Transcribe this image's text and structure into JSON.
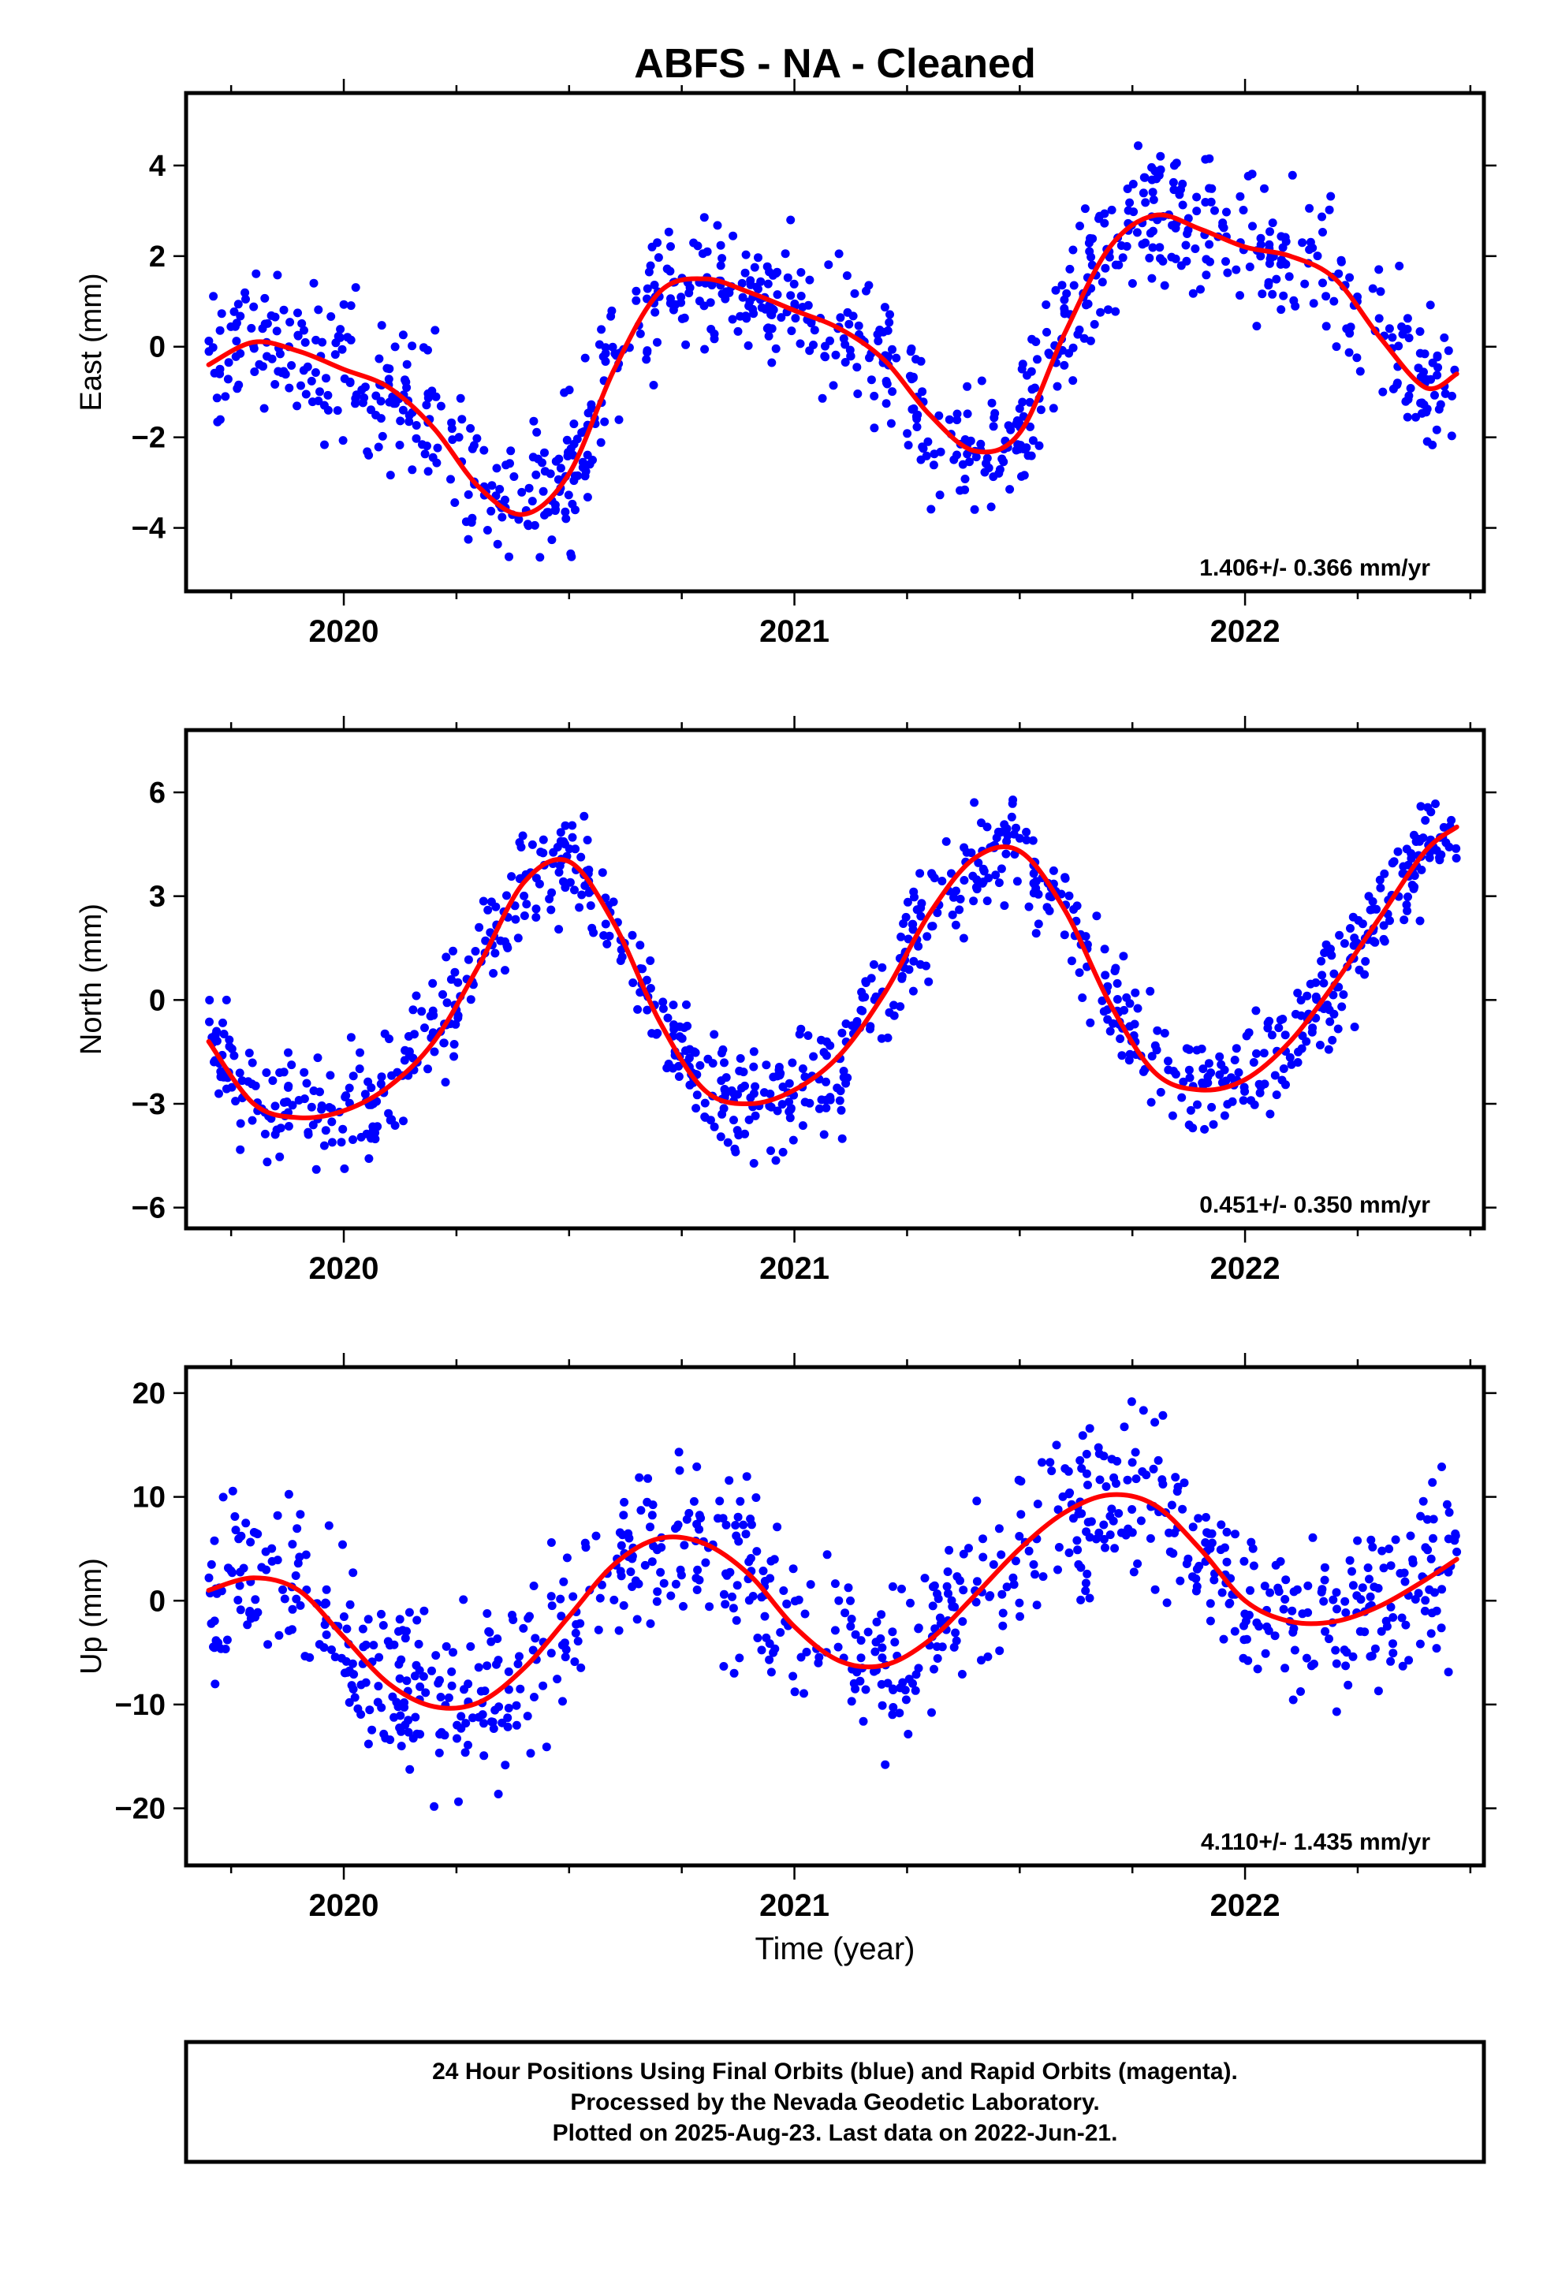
{
  "title": "ABFS  - NA - Cleaned",
  "x_axis": {
    "label": "Time (year)",
    "xlim": [
      2019.65,
      2022.53
    ],
    "major_ticks": [
      2020,
      2021,
      2022
    ],
    "major_tick_labels": [
      "2020",
      "2021",
      "2022"
    ],
    "minor_ticks": [
      2019.75,
      2020.25,
      2020.5,
      2020.75,
      2021.25,
      2021.5,
      2021.75,
      2022.25,
      2022.5
    ]
  },
  "footer": {
    "lines": [
      "24 Hour Positions Using Final Orbits (blue) and Rapid Orbits (magenta).",
      "Processed by the Nevada Geodetic Laboratory.",
      "Plotted on 2025-Aug-23. Last data on 2022-Jun-21."
    ]
  },
  "colors": {
    "points": "#0000ff",
    "fit": "#ff0000",
    "frame": "#000000"
  },
  "chart_data": [
    {
      "type": "scatter",
      "component": "east",
      "ylabel": "East (mm)",
      "ylim": [
        -5.4,
        5.6
      ],
      "yticks": [
        -4,
        -2,
        0,
        2,
        4
      ],
      "ytick_labels": [
        "−4",
        "−2",
        "0",
        "2",
        "4"
      ],
      "rate_text": "1.406+/- 0.366 mm/yr",
      "data_start": 2019.7,
      "data_end": 2022.47,
      "n_points": 900,
      "scatter_sd": 0.75,
      "series": [
        {
          "name": "daily positions",
          "kind": "points",
          "color": "#0000ff"
        },
        {
          "name": "model fit",
          "kind": "line",
          "color": "#ff0000",
          "x": [
            2019.7,
            2019.8,
            2019.9,
            2020.0,
            2020.1,
            2020.2,
            2020.3,
            2020.4,
            2020.5,
            2020.6,
            2020.7,
            2020.8,
            2020.9,
            2021.0,
            2021.1,
            2021.2,
            2021.3,
            2021.4,
            2021.5,
            2021.6,
            2021.7,
            2021.8,
            2021.9,
            2022.0,
            2022.1,
            2022.2,
            2022.3,
            2022.4,
            2022.47
          ],
          "y": [
            -0.4,
            0.1,
            -0.1,
            -0.5,
            -0.9,
            -1.8,
            -3.1,
            -3.7,
            -2.8,
            -0.5,
            1.2,
            1.5,
            1.2,
            0.8,
            0.4,
            -0.3,
            -1.5,
            -2.3,
            -1.9,
            0.3,
            2.2,
            2.9,
            2.6,
            2.2,
            2.0,
            1.5,
            0.2,
            -0.9,
            -0.6
          ]
        }
      ]
    },
    {
      "type": "scatter",
      "component": "north",
      "ylabel": "North (mm)",
      "ylim": [
        -6.6,
        7.8
      ],
      "yticks": [
        -6,
        -3,
        0,
        3,
        6
      ],
      "ytick_labels": [
        "−6",
        "−3",
        "0",
        "3",
        "6"
      ],
      "rate_text": "0.451+/- 0.350 mm/yr",
      "data_start": 2019.7,
      "data_end": 2022.47,
      "n_points": 900,
      "scatter_sd": 0.8,
      "series": [
        {
          "name": "daily positions",
          "kind": "points",
          "color": "#0000ff"
        },
        {
          "name": "model fit",
          "kind": "line",
          "color": "#ff0000",
          "x": [
            2019.7,
            2019.8,
            2019.9,
            2020.0,
            2020.1,
            2020.2,
            2020.3,
            2020.4,
            2020.5,
            2020.6,
            2020.7,
            2020.8,
            2020.9,
            2021.0,
            2021.1,
            2021.2,
            2021.3,
            2021.4,
            2021.5,
            2021.6,
            2021.7,
            2021.8,
            2021.9,
            2022.0,
            2022.1,
            2022.2,
            2022.3,
            2022.4,
            2022.47
          ],
          "y": [
            -1.2,
            -3.0,
            -3.4,
            -3.2,
            -2.5,
            -1.2,
            1.0,
            3.4,
            4.0,
            2.2,
            -0.6,
            -2.6,
            -3.0,
            -2.6,
            -1.6,
            0.2,
            2.5,
            4.1,
            4.3,
            2.6,
            -0.1,
            -2.1,
            -2.6,
            -2.3,
            -1.2,
            0.5,
            2.4,
            4.3,
            5.0
          ]
        }
      ]
    },
    {
      "type": "scatter",
      "component": "up",
      "ylabel": "Up (mm)",
      "ylim": [
        -25.5,
        22.5
      ],
      "yticks": [
        -20,
        -10,
        0,
        10,
        20
      ],
      "ytick_labels": [
        "−20",
        "−10",
        "0",
        "10",
        "20"
      ],
      "rate_text": "4.110+/- 1.435 mm/yr",
      "data_start": 2019.7,
      "data_end": 2022.47,
      "n_points": 850,
      "scatter_sd": 4.0,
      "series": [
        {
          "name": "daily positions",
          "kind": "points",
          "color": "#0000ff"
        },
        {
          "name": "model fit",
          "kind": "line",
          "color": "#ff0000",
          "x": [
            2019.7,
            2019.8,
            2019.9,
            2020.0,
            2020.1,
            2020.2,
            2020.3,
            2020.4,
            2020.5,
            2020.6,
            2020.7,
            2020.8,
            2020.9,
            2021.0,
            2021.1,
            2021.2,
            2021.3,
            2021.4,
            2021.5,
            2021.6,
            2021.7,
            2021.8,
            2021.9,
            2022.0,
            2022.1,
            2022.2,
            2022.3,
            2022.4,
            2022.47
          ],
          "y": [
            1.0,
            2.2,
            1.0,
            -3.5,
            -8.0,
            -10.2,
            -9.8,
            -6.5,
            -1.5,
            3.5,
            6.0,
            5.5,
            2.5,
            -2.5,
            -5.8,
            -6.2,
            -3.8,
            0.5,
            5.0,
            8.5,
            10.2,
            9.2,
            5.0,
            0.0,
            -2.0,
            -2.0,
            -0.5,
            2.0,
            4.0
          ]
        }
      ]
    }
  ]
}
